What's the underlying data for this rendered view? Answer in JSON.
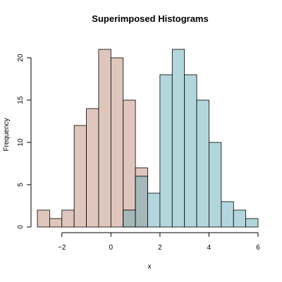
{
  "chart_data": {
    "type": "bar",
    "title": "Superimposed Histograms",
    "xlabel": "x",
    "ylabel": "Frequency",
    "xlim": [
      -3,
      6
    ],
    "ylim": [
      0,
      22
    ],
    "x_ticks": [
      -2,
      0,
      2,
      4,
      6
    ],
    "y_ticks": [
      0,
      5,
      10,
      15,
      20
    ],
    "x_tick_labels": [
      "−2",
      "0",
      "2",
      "4",
      "6"
    ],
    "y_tick_labels": [
      "0",
      "5",
      "10",
      "15",
      "20"
    ],
    "bin_width": 0.5,
    "grid": false,
    "overlap_color": "#a4b8b9",
    "series": [
      {
        "color": "#dfc6bd",
        "bin_starts": [
          -3.0,
          -2.5,
          -2.0,
          -1.5,
          -1.0,
          -0.5,
          0.0,
          0.5,
          1.0
        ],
        "values": [
          2,
          1,
          2,
          12,
          14,
          21,
          20,
          15,
          7
        ]
      },
      {
        "color": "#b3d6dd",
        "bin_starts": [
          0.5,
          1.0,
          1.5,
          2.0,
          2.5,
          3.0,
          3.5,
          4.0,
          4.5,
          5.0,
          5.5
        ],
        "values": [
          2,
          6,
          4,
          18,
          21,
          18,
          15,
          10,
          3,
          2,
          1
        ]
      }
    ]
  }
}
